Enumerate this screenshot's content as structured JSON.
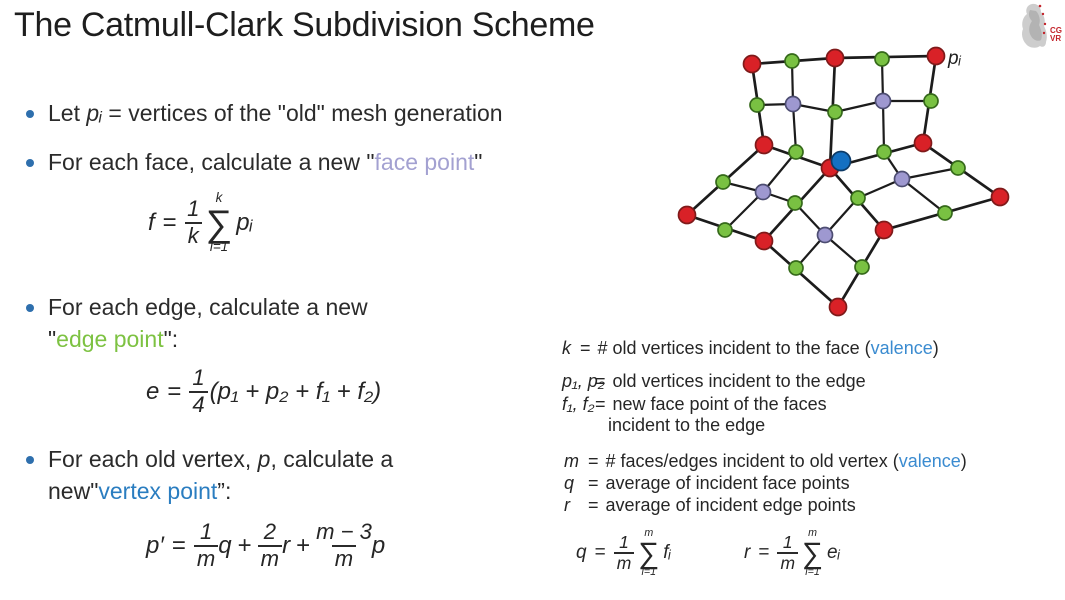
{
  "slide": {
    "title": "The Catmull-Clark Subdivision Scheme"
  },
  "logo": {
    "line1": "CG",
    "line2": "VR"
  },
  "bullets": {
    "b1": {
      "s1": "Let ",
      "s2": "pᵢ",
      "s3": " = vertices of the \"old\" mesh generation"
    },
    "b2": {
      "s1": "For each face, calculate a new \"",
      "s2": "face point",
      "s3": "\""
    },
    "b3": {
      "l1": "For each edge, calculate a new",
      "q1": "\"",
      "s2": "edge point",
      "q2": "\":"
    },
    "b4": {
      "s1": "For each old vertex, ",
      "s2": "p",
      "s3": ", calculate a",
      "l2pre": "new",
      "q1": "\"",
      "s4": "vertex point",
      "q2": "”:"
    }
  },
  "formulas": {
    "face": {
      "lhs": "f",
      "eq": "=",
      "num": "1",
      "den": "k",
      "top": "k",
      "sum": "∑",
      "bot": "i=1",
      "rhs": "pᵢ"
    },
    "edge": {
      "lhs": "e",
      "eq": "=",
      "num": "1",
      "den": "4",
      "rhs": "(p₁ + p₂ + f₁ + f₂)"
    },
    "vertex": {
      "lhs": "p′",
      "eq": "=",
      "n1": "1",
      "d1": "m",
      "v1": "q",
      "plus1": "+",
      "n2": "2",
      "d2": "m",
      "v2": "r",
      "plus2": "+",
      "n3": "m − 3",
      "d3": "m",
      "v3": "p"
    },
    "q": {
      "lhs": "q",
      "eq": "=",
      "num": "1",
      "den": "m",
      "top": "m",
      "sum": "∑",
      "bot": "i=1",
      "rhs": "fᵢ"
    },
    "r": {
      "lhs": "r",
      "eq": "=",
      "num": "1",
      "den": "m",
      "top": "m",
      "sum": "∑",
      "bot": "i=1",
      "rhs": "eᵢ"
    }
  },
  "legend1": {
    "r1": {
      "lhs": "k",
      "eq": "=",
      "pre": "# old vertices incident to the face (",
      "hl": "valence",
      "post": ")"
    },
    "r2": {
      "lhs": "p₁, p₂",
      "eq": "=",
      "text": "old vertices incident to the edge"
    },
    "r3": {
      "lhs": "f₁, f₂",
      "eq": "=",
      "text": "new face point of the faces"
    },
    "r4": {
      "text": "incident to the edge"
    }
  },
  "legend2": {
    "r1": {
      "lhs": "m",
      "eq": "=",
      "pre": "# faces/edges incident to old vertex (",
      "hl": "valence",
      "post": ")"
    },
    "r2": {
      "lhs": "q",
      "eq": "=",
      "text": "average of incident face points"
    },
    "r3": {
      "lhs": "r",
      "eq": "=",
      "text": "average of incident edge points"
    }
  },
  "mesh": {
    "label": "pᵢ",
    "colors": {
      "old_vertex": "#d92127",
      "edge_point": "#79c142",
      "face_point": "#9e98d0",
      "vertex_point": "#1470c2",
      "edge_line": "#1c1c1c"
    },
    "strokes": {
      "old_vertex": "#7f1a1a",
      "edge_point": "#35691a",
      "face_point": "#4d4d72",
      "vertex_point": "#0d3a66"
    },
    "radii": {
      "old_vertex": 8.5,
      "edge_point": 7,
      "face_point": 7.5,
      "vertex_point": 9.5
    },
    "nodes": {
      "R1": [
        752,
        64,
        "old_vertex"
      ],
      "R2": [
        835,
        58,
        "old_vertex"
      ],
      "R3": [
        936,
        56,
        "old_vertex"
      ],
      "R4": [
        764,
        145,
        "old_vertex"
      ],
      "R5": [
        830,
        168,
        "old_vertex"
      ],
      "R6": [
        923,
        143,
        "old_vertex"
      ],
      "R7": [
        687,
        215,
        "old_vertex"
      ],
      "R8": [
        764,
        241,
        "old_vertex"
      ],
      "R9": [
        838,
        307,
        "old_vertex"
      ],
      "R10": [
        884,
        230,
        "old_vertex"
      ],
      "R11": [
        1000,
        197,
        "old_vertex"
      ],
      "G1": [
        792,
        61,
        "edge_point"
      ],
      "G2": [
        882,
        59,
        "edge_point"
      ],
      "G3": [
        757,
        105,
        "edge_point"
      ],
      "G4": [
        835,
        112,
        "edge_point"
      ],
      "G5": [
        931,
        101,
        "edge_point"
      ],
      "G6": [
        796,
        152,
        "edge_point"
      ],
      "G7": [
        884,
        152,
        "edge_point"
      ],
      "G8": [
        723,
        182,
        "edge_point"
      ],
      "G9": [
        795,
        203,
        "edge_point"
      ],
      "G10": [
        858,
        198,
        "edge_point"
      ],
      "G11": [
        958,
        168,
        "edge_point"
      ],
      "G12": [
        725,
        230,
        "edge_point"
      ],
      "G13": [
        796,
        268,
        "edge_point"
      ],
      "G14": [
        862,
        267,
        "edge_point"
      ],
      "G15": [
        945,
        213,
        "edge_point"
      ],
      "F1": [
        793,
        104,
        "face_point"
      ],
      "F2": [
        883,
        101,
        "face_point"
      ],
      "F3": [
        763,
        192,
        "face_point"
      ],
      "F4": [
        825,
        235,
        "face_point"
      ],
      "F5": [
        902,
        179,
        "face_point"
      ],
      "BL": [
        841,
        161,
        "vertex_point"
      ]
    },
    "edges_old": [
      [
        "R1",
        "R2"
      ],
      [
        "R2",
        "R3"
      ],
      [
        "R1",
        "R4"
      ],
      [
        "R2",
        "R5"
      ],
      [
        "R3",
        "R6"
      ],
      [
        "R4",
        "R5"
      ],
      [
        "R5",
        "R6"
      ],
      [
        "R4",
        "R7"
      ],
      [
        "R5",
        "R8"
      ],
      [
        "R5",
        "R10"
      ],
      [
        "R6",
        "R11"
      ],
      [
        "R7",
        "R8"
      ],
      [
        "R8",
        "R9"
      ],
      [
        "R9",
        "R10"
      ],
      [
        "R10",
        "R11"
      ]
    ],
    "edges_new": [
      [
        "F1",
        "G1"
      ],
      [
        "F1",
        "G3"
      ],
      [
        "F1",
        "G4"
      ],
      [
        "F1",
        "G6"
      ],
      [
        "F2",
        "G2"
      ],
      [
        "F2",
        "G4"
      ],
      [
        "F2",
        "G5"
      ],
      [
        "F2",
        "G7"
      ],
      [
        "F3",
        "G6"
      ],
      [
        "F3",
        "G8"
      ],
      [
        "F3",
        "G9"
      ],
      [
        "F3",
        "G12"
      ],
      [
        "F4",
        "G9"
      ],
      [
        "F4",
        "G10"
      ],
      [
        "F4",
        "G13"
      ],
      [
        "F4",
        "G14"
      ],
      [
        "F5",
        "G7"
      ],
      [
        "F5",
        "G10"
      ],
      [
        "F5",
        "G11"
      ],
      [
        "F5",
        "G15"
      ]
    ]
  }
}
